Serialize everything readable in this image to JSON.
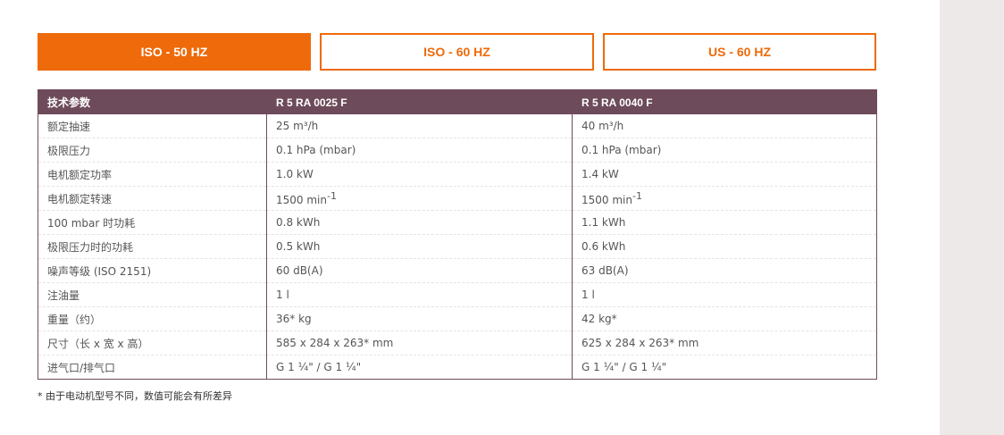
{
  "tabs": [
    {
      "label": "ISO - 50 HZ",
      "active": true
    },
    {
      "label": "ISO - 60 HZ",
      "active": false
    },
    {
      "label": "US - 60 HZ",
      "active": false
    }
  ],
  "table": {
    "headers": [
      "技术参数",
      "R 5 RA 0025 F",
      "R 5 RA 0040 F"
    ],
    "rows": [
      [
        "额定抽速",
        "25 m³/h",
        "40 m³/h"
      ],
      [
        "极限压力",
        "0.1 hPa (mbar)",
        "0.1 hPa (mbar)"
      ],
      [
        "电机额定功率",
        "1.0 kW",
        "1.4 kW"
      ],
      [
        "电机额定转速",
        "1500 min",
        "1500 min"
      ],
      [
        "100 mbar 时功耗",
        "0.8 kWh",
        "1.1 kWh"
      ],
      [
        "极限压力时的功耗",
        "0.5 kWh",
        "0.6 kWh"
      ],
      [
        "噪声等级 (ISO 2151)",
        "60 dB(A)",
        "63 dB(A)"
      ],
      [
        "注油量",
        "1 l",
        "1 l"
      ],
      [
        "重量（约）",
        "36* kg",
        "42 kg*"
      ],
      [
        "尺寸（长 x 宽 x 高）",
        "585 x 284 x 263* mm",
        "625 x 284 x 263* mm"
      ],
      [
        "进气口/排气口",
        "G 1 ¼\" / G 1 ¼\"",
        "G 1 ¼\" / G 1 ¼\""
      ]
    ],
    "speed_exponent": "-1"
  },
  "footnote": "* 由于电动机型号不同，数值可能会有所差异",
  "colors": {
    "accent": "#ee6a0a",
    "header": "#6e4b5a",
    "side_panel": "#ece9e8"
  }
}
